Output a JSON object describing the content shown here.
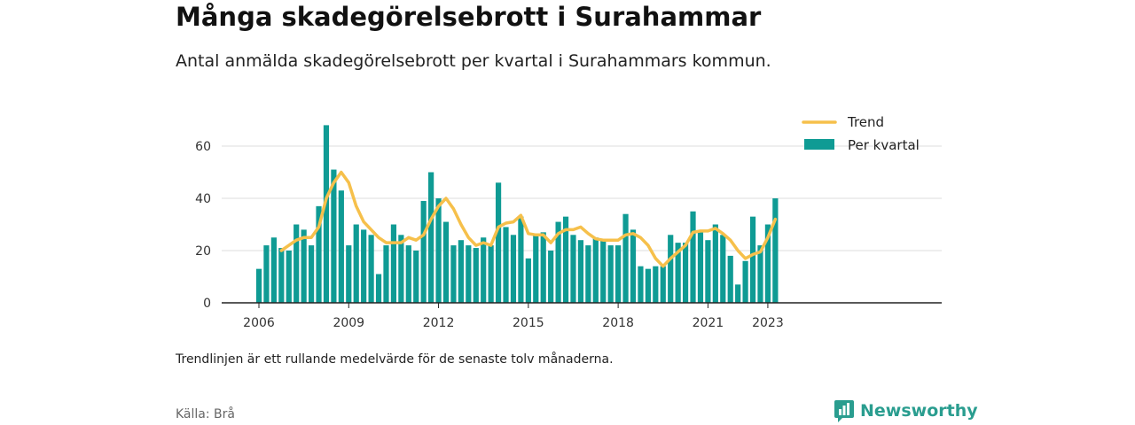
{
  "title": "Många skadegörelsebrott i Surahammar",
  "subtitle": "Antal anmälda skadegörelsebrott per kvartal i Surahammars kommun.",
  "note": "Trendlinjen är ett rullande medelvärde för de senaste tolv månaderna.",
  "source": "Källa: Brå",
  "brand": {
    "name": "Newsworthy",
    "icon": "newsworthy-logo-icon"
  },
  "colors": {
    "bars": "#0f9b94",
    "trend": "#f6c04b",
    "grid": "#dddddd",
    "axis": "#222222"
  },
  "chart_data": {
    "type": "bar",
    "x_start": "2006 Q1",
    "xticks": [
      "2006",
      "2009",
      "2012",
      "2015",
      "2018",
      "2021",
      "2023"
    ],
    "yticks": [
      "0",
      "20",
      "40",
      "60"
    ],
    "ylim": [
      0,
      70
    ],
    "grid": true,
    "legend_position": "top-right",
    "series": [
      {
        "name": "Per kvartal",
        "type": "bar",
        "values": [
          13,
          22,
          25,
          21,
          20,
          30,
          28,
          22,
          37,
          68,
          51,
          43,
          22,
          30,
          28,
          26,
          11,
          22,
          30,
          26,
          22,
          20,
          39,
          50,
          40,
          31,
          22,
          24,
          22,
          21,
          25,
          22,
          46,
          29,
          26,
          33,
          17,
          26,
          27,
          20,
          31,
          33,
          26,
          24,
          22,
          25,
          24,
          22,
          22,
          34,
          28,
          14,
          13,
          14,
          14,
          26,
          23,
          23,
          35,
          27,
          24,
          30,
          26,
          18,
          7,
          16,
          33,
          22,
          30,
          40
        ]
      },
      {
        "name": "Trend",
        "type": "line",
        "values": [
          null,
          null,
          null,
          20,
          22,
          24,
          25,
          25,
          29,
          40,
          46,
          50,
          46,
          37,
          31,
          28,
          25,
          23,
          23,
          23,
          25,
          24,
          26,
          32,
          37,
          40,
          36,
          30,
          25,
          22,
          23,
          22,
          29,
          30.5,
          31,
          33.5,
          26.5,
          26,
          26,
          23,
          26.5,
          28,
          28,
          29,
          26.5,
          24.5,
          24,
          24,
          24,
          26,
          26.5,
          25,
          22,
          17,
          14,
          17,
          19.5,
          22,
          27,
          27.5,
          27.5,
          28.5,
          26.5,
          24,
          20,
          17,
          18.5,
          19.5,
          25,
          32
        ]
      }
    ]
  }
}
